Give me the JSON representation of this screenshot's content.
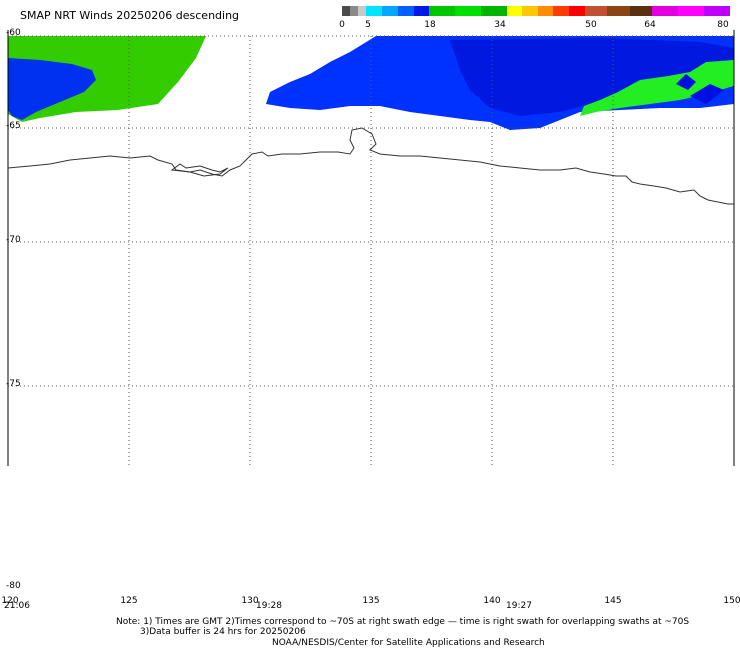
{
  "title": "SMAP NRT Winds  20250206 descending",
  "colorbar": {
    "labels": [
      {
        "text": "0",
        "value": 0
      },
      {
        "text": "5",
        "value": 5
      },
      {
        "text": "18",
        "value": 18
      },
      {
        "text": "34",
        "value": 34
      },
      {
        "text": "50",
        "value": 50
      },
      {
        "text": "64",
        "value": 64
      },
      {
        "text": "80",
        "value": 80
      }
    ],
    "segments": [
      {
        "from": 0,
        "to": 5,
        "colors": [
          "#4a4a4a",
          "#8a8a8a",
          "#c8c8c8"
        ]
      },
      {
        "from": 5,
        "to": 18,
        "colors": [
          "#00e5ff",
          "#00a8ff",
          "#0060ff",
          "#0018e8"
        ]
      },
      {
        "from": 18,
        "to": 34,
        "colors": [
          "#00c800",
          "#00e000",
          "#00b400"
        ]
      },
      {
        "from": 34,
        "to": 50,
        "colors": [
          "#ffff00",
          "#ffc800",
          "#ff8c00",
          "#ff3c00",
          "#ff0000"
        ]
      },
      {
        "from": 50,
        "to": 64,
        "colors": [
          "#c05030",
          "#8b4513",
          "#5a3010"
        ]
      },
      {
        "from": 64,
        "to": 80,
        "colors": [
          "#e000e0",
          "#ff00ff",
          "#c000ff"
        ]
      }
    ]
  },
  "axes": {
    "lat_labels": [
      "-60",
      "-65",
      "-70",
      "-75",
      "-80"
    ],
    "lon_labels": [
      "120",
      "125",
      "130",
      "135",
      "140",
      "145",
      "150"
    ]
  },
  "swath_times": [
    "21:06",
    "19:28",
    "19:27"
  ],
  "notes": {
    "line1": "Note: 1) Times are GMT 2)Times correspond to ~70S at right swath edge — time is right swath for overlapping swaths at ~70S",
    "line2": "3)Data buffer is 24 hrs for 20250206",
    "line3": "NOAA/NESDIS/Center for Satellite Applications and Research"
  },
  "wind_colors": {
    "blue": "#0032ff",
    "deep_blue": "#0010e0",
    "green": "#33cc00",
    "bright_green": "#22ee22"
  }
}
